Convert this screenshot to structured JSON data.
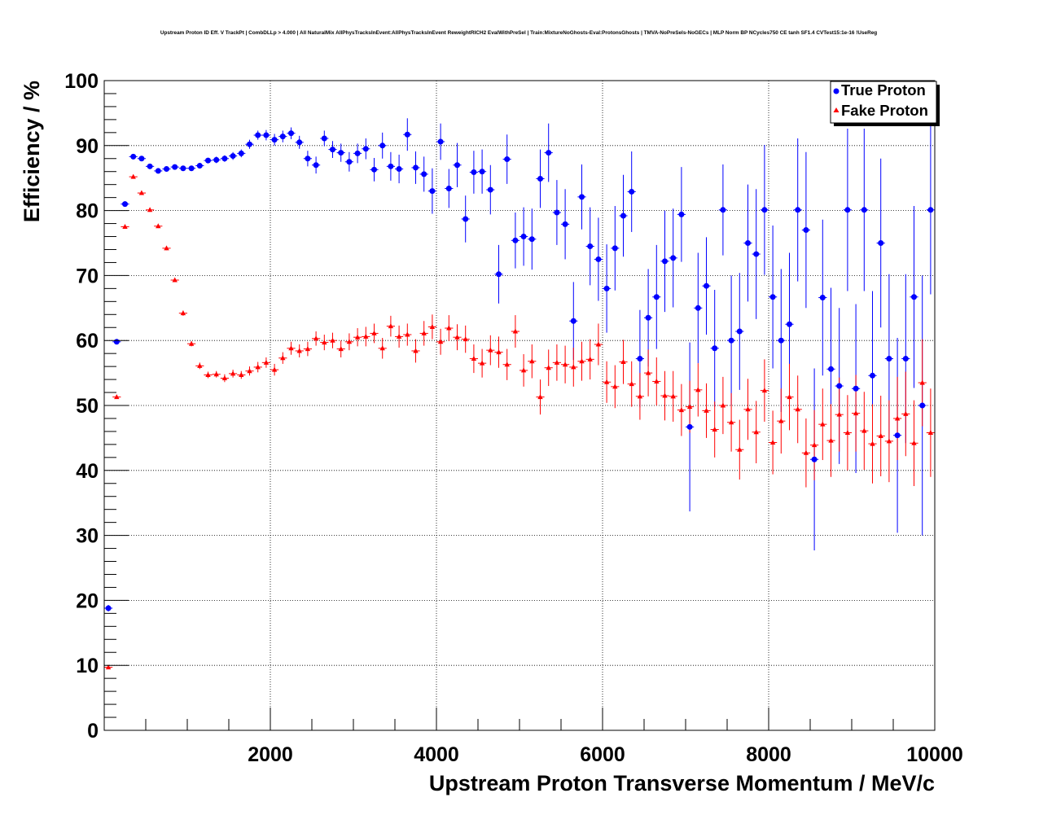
{
  "chart_data": {
    "type": "scatter",
    "title": "Upstream Proton ID Eff. V TrackPt | CombDLLp > 4.000 | All NaturalMix AllPhysTracksInEvent:AllPhysTracksInEvent ReweightRICH2 EvalWithPreSel | Train:MixtureNoGhosts-Eval:ProtonsGhosts | TMVA-NoPreSels-NoGECs | MLP Norm BP NCycles750 CE tanh SF1.4 CVTest15:1e-16 !UseReg",
    "xlabel": "Upstream Proton Transverse Momentum / MeV/c",
    "ylabel": "Efficiency / %",
    "xlim": [
      0,
      10000
    ],
    "ylim": [
      0,
      100
    ],
    "x_ticks": [
      2000,
      4000,
      6000,
      8000,
      10000
    ],
    "x_tick_labels": [
      "2000",
      "4000",
      "6000",
      "8000",
      "10000"
    ],
    "y_ticks": [
      0,
      10,
      20,
      30,
      40,
      50,
      60,
      70,
      80,
      90,
      100
    ],
    "y_tick_labels": [
      "0",
      "10",
      "20",
      "30",
      "40",
      "50",
      "60",
      "70",
      "80",
      "90",
      "100"
    ],
    "grid": true,
    "legend_position": "top-right",
    "bin_width": 100,
    "series": [
      {
        "name": "True Proton",
        "color": "#0000ff",
        "marker": "circle",
        "points": [
          [
            50,
            18.8,
            0.5
          ],
          [
            150,
            59.8,
            0.4
          ],
          [
            250,
            81,
            0.4
          ],
          [
            350,
            88.3,
            0.3
          ],
          [
            450,
            88,
            0.3
          ],
          [
            550,
            86.8,
            0.3
          ],
          [
            650,
            86.1,
            0.3
          ],
          [
            750,
            86.4,
            0.3
          ],
          [
            850,
            86.7,
            0.3
          ],
          [
            950,
            86.5,
            0.4
          ],
          [
            1050,
            86.5,
            0.4
          ],
          [
            1150,
            86.9,
            0.4
          ],
          [
            1250,
            87.7,
            0.4
          ],
          [
            1350,
            87.8,
            0.5
          ],
          [
            1450,
            88,
            0.5
          ],
          [
            1550,
            88.4,
            0.6
          ],
          [
            1650,
            88.8,
            0.6
          ],
          [
            1750,
            90.2,
            0.7
          ],
          [
            1850,
            91.6,
            0.7
          ],
          [
            1950,
            91.6,
            0.8
          ],
          [
            2050,
            90.9,
            0.9
          ],
          [
            2150,
            91.4,
            0.9
          ],
          [
            2250,
            91.9,
            0.9
          ],
          [
            2350,
            90.5,
            1
          ],
          [
            2450,
            88,
            1.2
          ],
          [
            2550,
            87,
            1.3
          ],
          [
            2650,
            91.1,
            1.2
          ],
          [
            2750,
            89.4,
            1.3
          ],
          [
            2850,
            88.9,
            1.4
          ],
          [
            2950,
            87.5,
            1.5
          ],
          [
            3050,
            88.8,
            1.5
          ],
          [
            3150,
            89.5,
            1.6
          ],
          [
            3250,
            86.3,
            1.8
          ],
          [
            3350,
            90,
            2
          ],
          [
            3450,
            86.8,
            2.2
          ],
          [
            3550,
            86.4,
            2.2
          ],
          [
            3650,
            91.7,
            2.5
          ],
          [
            3750,
            86.6,
            2.5
          ],
          [
            3850,
            85.6,
            2.7
          ],
          [
            3950,
            83,
            3.5
          ],
          [
            4050,
            90.6,
            2.8
          ],
          [
            4150,
            83.4,
            3
          ],
          [
            4250,
            87,
            3.4
          ],
          [
            4350,
            78.7,
            3.6
          ],
          [
            4450,
            85.9,
            3.3
          ],
          [
            4550,
            86,
            3.4
          ],
          [
            4650,
            83.2,
            3.8
          ],
          [
            4750,
            70.2,
            4.5
          ],
          [
            4850,
            87.9,
            3.8
          ],
          [
            4950,
            75.4,
            4.3
          ],
          [
            5050,
            76,
            4.5
          ],
          [
            5150,
            75.6,
            4.7
          ],
          [
            5250,
            84.9,
            4.5
          ],
          [
            5350,
            88.9,
            4.5
          ],
          [
            5450,
            79.7,
            5
          ],
          [
            5550,
            77.9,
            5.4
          ],
          [
            5650,
            63,
            6
          ],
          [
            5750,
            82.1,
            5
          ],
          [
            5850,
            74.5,
            6
          ],
          [
            5950,
            72.5,
            6.4
          ],
          [
            6050,
            68,
            6.8
          ],
          [
            6150,
            74.2,
            6.5
          ],
          [
            6250,
            79.2,
            6.3
          ],
          [
            6350,
            82.9,
            6.2
          ],
          [
            6450,
            57.2,
            7.5
          ],
          [
            6550,
            63.5,
            7.5
          ],
          [
            6650,
            66.7,
            8
          ],
          [
            6750,
            72.2,
            7.8
          ],
          [
            6850,
            72.7,
            7.6
          ],
          [
            6950,
            79.4,
            7.3
          ],
          [
            7050,
            46.7,
            13
          ],
          [
            7150,
            65,
            8.5
          ],
          [
            7250,
            68.4,
            7.5
          ],
          [
            7350,
            58.8,
            9
          ],
          [
            7450,
            80.1,
            7
          ],
          [
            7550,
            60,
            10
          ],
          [
            7650,
            61.4,
            9
          ],
          [
            7750,
            75,
            9
          ],
          [
            7850,
            73.3,
            10
          ],
          [
            7950,
            80.1,
            10
          ],
          [
            8050,
            66.7,
            11
          ],
          [
            8150,
            60,
            11
          ],
          [
            8250,
            62.5,
            11
          ],
          [
            8350,
            80.1,
            11
          ],
          [
            8450,
            77,
            12
          ],
          [
            8550,
            41.7,
            14
          ],
          [
            8650,
            66.6,
            12
          ],
          [
            8750,
            55.6,
            12.5
          ],
          [
            8850,
            53,
            12
          ],
          [
            8950,
            80.1,
            12.5
          ],
          [
            9050,
            52.6,
            13
          ],
          [
            9150,
            80.1,
            12.5
          ],
          [
            9250,
            54.6,
            13
          ],
          [
            9350,
            75,
            13
          ],
          [
            9450,
            57.2,
            13
          ],
          [
            9550,
            45.4,
            15
          ],
          [
            9650,
            57.2,
            13
          ],
          [
            9750,
            66.7,
            14
          ],
          [
            9850,
            50,
            20
          ],
          [
            9950,
            80.1,
            13
          ]
        ]
      },
      {
        "name": "Fake Proton",
        "color": "#ff0000",
        "marker": "triangle",
        "points": [
          [
            50,
            9.7,
            0.3
          ],
          [
            150,
            51.3,
            0.3
          ],
          [
            250,
            77.5,
            0.3
          ],
          [
            350,
            85.2,
            0.3
          ],
          [
            450,
            82.7,
            0.3
          ],
          [
            550,
            80.1,
            0.3
          ],
          [
            650,
            77.6,
            0.3
          ],
          [
            750,
            74.2,
            0.3
          ],
          [
            850,
            69.3,
            0.3
          ],
          [
            950,
            64.2,
            0.4
          ],
          [
            1050,
            59.5,
            0.4
          ],
          [
            1150,
            56.1,
            0.5
          ],
          [
            1250,
            54.7,
            0.5
          ],
          [
            1350,
            54.8,
            0.5
          ],
          [
            1450,
            54.2,
            0.6
          ],
          [
            1550,
            54.9,
            0.6
          ],
          [
            1650,
            54.7,
            0.6
          ],
          [
            1750,
            55.3,
            0.7
          ],
          [
            1850,
            55.9,
            0.8
          ],
          [
            1950,
            56.6,
            0.8
          ],
          [
            2050,
            55.5,
            0.9
          ],
          [
            2150,
            57.3,
            0.9
          ],
          [
            2250,
            58.8,
            1
          ],
          [
            2350,
            58.4,
            1
          ],
          [
            2450,
            58.7,
            1.1
          ],
          [
            2550,
            60.3,
            1.1
          ],
          [
            2650,
            59.7,
            1.2
          ],
          [
            2750,
            60,
            1.2
          ],
          [
            2850,
            58.7,
            1.3
          ],
          [
            2950,
            59.8,
            1.3
          ],
          [
            3050,
            60.5,
            1.4
          ],
          [
            3150,
            60.6,
            1.5
          ],
          [
            3250,
            61.1,
            1.5
          ],
          [
            3350,
            58.8,
            1.6
          ],
          [
            3450,
            62.2,
            1.6
          ],
          [
            3550,
            60.6,
            1.7
          ],
          [
            3650,
            60.9,
            1.7
          ],
          [
            3750,
            58.4,
            1.8
          ],
          [
            3850,
            61.1,
            1.9
          ],
          [
            3950,
            62.1,
            1.9
          ],
          [
            4050,
            59.8,
            2
          ],
          [
            4150,
            61.9,
            2
          ],
          [
            4250,
            60.5,
            2
          ],
          [
            4350,
            60.2,
            2.1
          ],
          [
            4450,
            57.2,
            2.2
          ],
          [
            4550,
            56.5,
            2.2
          ],
          [
            4650,
            58.5,
            2.3
          ],
          [
            4750,
            58.2,
            2.4
          ],
          [
            4850,
            56.3,
            2.4
          ],
          [
            4950,
            61.4,
            2.5
          ],
          [
            5050,
            55.4,
            2.5
          ],
          [
            5150,
            56.8,
            2.6
          ],
          [
            5250,
            51.3,
            2.7
          ],
          [
            5350,
            55.8,
            2.8
          ],
          [
            5450,
            56.6,
            2.8
          ],
          [
            5550,
            56.3,
            2.9
          ],
          [
            5650,
            55.9,
            3
          ],
          [
            5750,
            56.8,
            3
          ],
          [
            5850,
            57.1,
            3.1
          ],
          [
            5950,
            59.4,
            3.2
          ],
          [
            6050,
            53.6,
            3.2
          ],
          [
            6150,
            52.9,
            3.3
          ],
          [
            6250,
            56.7,
            3.4
          ],
          [
            6350,
            53.3,
            3.5
          ],
          [
            6450,
            51.4,
            3.6
          ],
          [
            6550,
            55,
            3.6
          ],
          [
            6650,
            53.7,
            3.7
          ],
          [
            6750,
            51.5,
            3.8
          ],
          [
            6850,
            51.4,
            3.9
          ],
          [
            6950,
            49.3,
            4
          ],
          [
            7050,
            49.8,
            4
          ],
          [
            7150,
            52.4,
            4.1
          ],
          [
            7250,
            49.2,
            4.2
          ],
          [
            7350,
            46.3,
            4.3
          ],
          [
            7450,
            50,
            4.4
          ],
          [
            7550,
            47.4,
            4.5
          ],
          [
            7650,
            43.2,
            4.6
          ],
          [
            7750,
            49.4,
            4.7
          ],
          [
            7850,
            45.9,
            4.8
          ],
          [
            7950,
            52.3,
            4.8
          ],
          [
            8050,
            44.3,
            4.9
          ],
          [
            8150,
            47.6,
            5
          ],
          [
            8250,
            51.3,
            5.1
          ],
          [
            8350,
            49.4,
            5.2
          ],
          [
            8450,
            42.7,
            5.3
          ],
          [
            8550,
            43.9,
            5.4
          ],
          [
            8650,
            47.1,
            5.5
          ],
          [
            8750,
            44.6,
            5.6
          ],
          [
            8850,
            48.6,
            5.7
          ],
          [
            8950,
            45.8,
            5.8
          ],
          [
            9050,
            48.8,
            5.9
          ],
          [
            9150,
            46.1,
            6
          ],
          [
            9250,
            44.1,
            6.1
          ],
          [
            9350,
            45.3,
            6.2
          ],
          [
            9450,
            44.5,
            6.3
          ],
          [
            9550,
            48,
            6.4
          ],
          [
            9650,
            48.7,
            6.5
          ],
          [
            9750,
            44.2,
            6.6
          ],
          [
            9850,
            53.5,
            6.7
          ],
          [
            9950,
            45.8,
            6.8
          ]
        ]
      }
    ]
  }
}
